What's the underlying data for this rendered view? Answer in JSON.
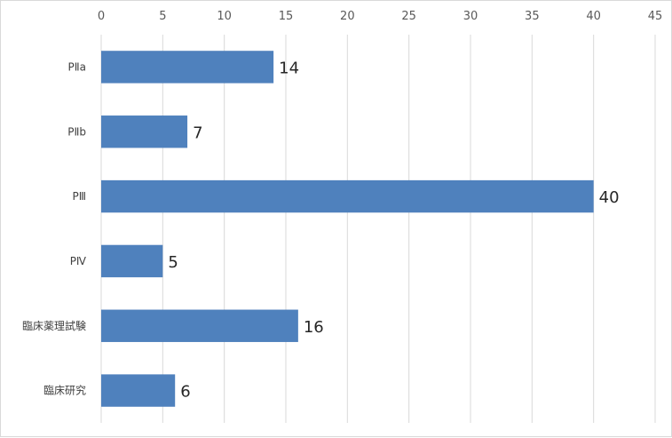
{
  "chart_data": {
    "type": "bar",
    "orientation": "horizontal",
    "categories": [
      "PⅡa",
      "PⅡb",
      "PⅢ",
      "PⅣ",
      "臨床薬理試験",
      "臨床研究"
    ],
    "values": [
      14,
      7,
      40,
      5,
      16,
      6
    ],
    "data_labels": [
      "14",
      "7",
      "40",
      "5",
      "16",
      "6"
    ],
    "x_ticks": [
      "0",
      "5",
      "10",
      "15",
      "20",
      "25",
      "30",
      "35",
      "40",
      "45"
    ],
    "xlim": [
      0,
      45
    ],
    "x_axis_position": "top",
    "grid": true,
    "legend": "none",
    "bar_color": "#4f81bd",
    "title": "",
    "xlabel": "",
    "ylabel": ""
  }
}
